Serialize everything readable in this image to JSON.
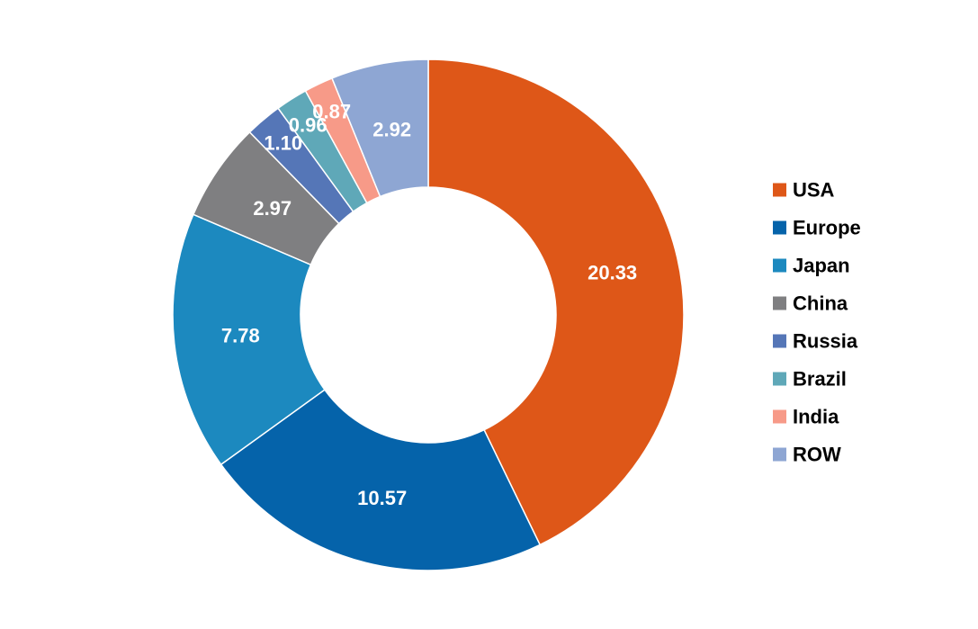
{
  "chart_data": {
    "type": "pie",
    "variant": "donut",
    "title": "",
    "legend_position": "right",
    "categories": [
      "USA",
      "Europe",
      "Japan",
      "China",
      "Russia",
      "Brazil",
      "India",
      "ROW"
    ],
    "values": [
      20.33,
      10.57,
      7.78,
      2.97,
      1.1,
      0.96,
      0.87,
      2.92
    ],
    "labels": [
      "20.33",
      "10.57",
      "7.78",
      "2.97",
      "1.10",
      "0.96",
      "0.87",
      "2.92"
    ],
    "colors": [
      "#DE5718",
      "#0563AA",
      "#1C89BF",
      "#7F7F81",
      "#5576B7",
      "#5FA8B8",
      "#F79A88",
      "#8EA6D3"
    ]
  }
}
